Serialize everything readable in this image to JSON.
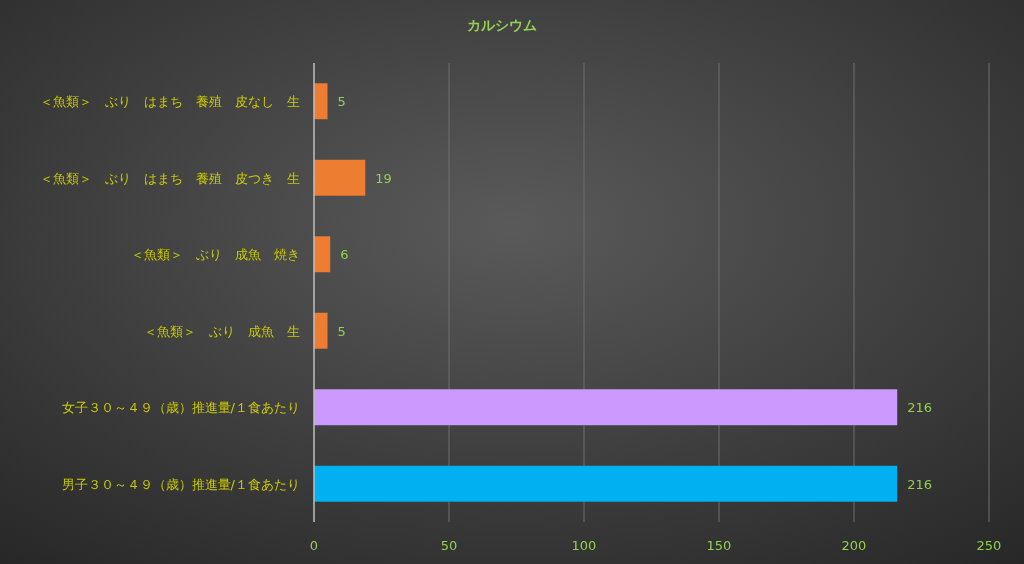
{
  "chart_data": {
    "type": "bar",
    "orientation": "horizontal",
    "title": "カルシウム",
    "categories": [
      "＜魚類＞　ぶり　はまち　養殖　皮なし　生",
      "＜魚類＞　ぶり　はまち　養殖　皮つき　生",
      "＜魚類＞　ぶり　成魚　焼き",
      "＜魚類＞　ぶり　成魚　生",
      "女子３０～４９（歳）推進量/１食あたり",
      "男子３０～４９（歳）推進量/１食あたり"
    ],
    "values": [
      5,
      19,
      6,
      5,
      216,
      216
    ],
    "colors": [
      "#ed7d31",
      "#ed7d31",
      "#ed7d31",
      "#ed7d31",
      "#cc99ff",
      "#00b0f0"
    ],
    "xlim": [
      0,
      250
    ],
    "xticks": [
      0,
      50,
      100,
      150,
      200,
      250
    ],
    "grid": "x",
    "data_labels": true
  }
}
